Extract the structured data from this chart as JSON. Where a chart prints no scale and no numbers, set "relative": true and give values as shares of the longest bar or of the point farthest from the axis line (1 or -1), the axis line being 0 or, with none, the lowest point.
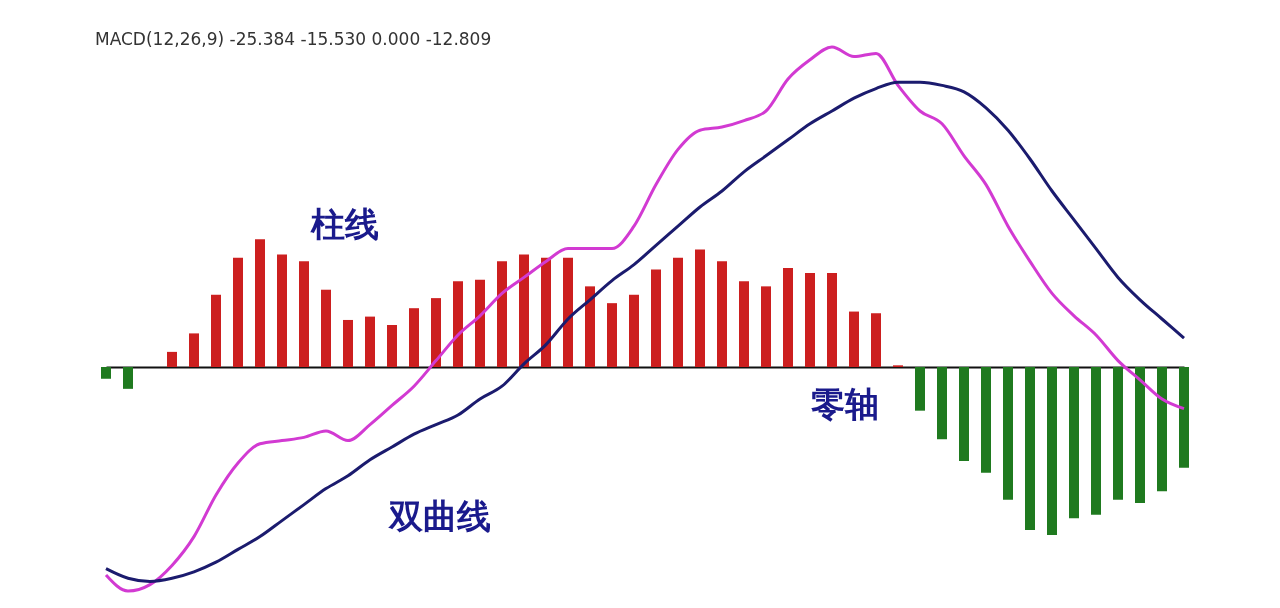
{
  "chart_data": [
    {
      "type": "line",
      "relative": true,
      "title": "MACD(12,26,9) -25.384 -15.530 0.000 -12.809",
      "annotations": [
        "双曲线"
      ],
      "categories": [
        null,
        null,
        null,
        null,
        null,
        null,
        null,
        null,
        null,
        null,
        null,
        null,
        null,
        null,
        null,
        null,
        null,
        null,
        null,
        null,
        null,
        null,
        null,
        null,
        null,
        null,
        null,
        null,
        null,
        null,
        null,
        null,
        null,
        null,
        null,
        null,
        null,
        null,
        null,
        null,
        null,
        null,
        null,
        null,
        null,
        null,
        null,
        null,
        null,
        null
      ],
      "series": [
        {
          "color": "#d23ad2",
          "values": [
            -0.65,
            -0.7,
            -0.68,
            -0.62,
            -0.53,
            -0.4,
            -0.3,
            -0.24,
            -0.23,
            -0.22,
            -0.2,
            -0.23,
            -0.18,
            -0.12,
            -0.06,
            0.02,
            0.1,
            0.16,
            0.23,
            0.28,
            0.33,
            0.37,
            0.37,
            0.37,
            0.44,
            0.57,
            0.68,
            0.74,
            0.75,
            0.77,
            0.8,
            0.9,
            0.96,
            1.0,
            0.97,
            0.98,
            0.88,
            0.8,
            0.76,
            0.66,
            0.57,
            0.44,
            0.33,
            0.23,
            0.16,
            0.1,
            0.02,
            -0.04,
            -0.1,
            -0.13
          ]
        },
        {
          "color": "#1b1b6e",
          "values": [
            -0.63,
            -0.66,
            -0.67,
            -0.66,
            -0.64,
            -0.61,
            -0.57,
            -0.53,
            -0.48,
            -0.43,
            -0.38,
            -0.34,
            -0.29,
            -0.25,
            -0.21,
            -0.18,
            -0.15,
            -0.1,
            -0.06,
            0.01,
            0.07,
            0.15,
            0.21,
            0.27,
            0.32,
            0.38,
            0.44,
            0.5,
            0.55,
            0.61,
            0.66,
            0.71,
            0.76,
            0.8,
            0.84,
            0.87,
            0.89,
            0.89,
            0.88,
            0.86,
            0.81,
            0.74,
            0.65,
            0.55,
            0.46,
            0.37,
            0.28,
            0.21,
            0.15,
            0.09
          ]
        }
      ]
    },
    {
      "type": "bar",
      "relative": true,
      "annotations": [
        "柱线",
        "零轴"
      ],
      "categories": [
        null,
        null,
        null,
        null,
        null,
        null,
        null,
        null,
        null,
        null,
        null,
        null,
        null,
        null,
        null,
        null,
        null,
        null,
        null,
        null,
        null,
        null,
        null,
        null,
        null,
        null,
        null,
        null,
        null,
        null,
        null,
        null,
        null,
        null,
        null,
        null,
        null,
        null,
        null,
        null,
        null,
        null,
        null,
        null,
        null,
        null,
        null,
        null,
        null,
        null
      ],
      "values": [
        -0.07,
        -0.13,
        0,
        0.09,
        0.2,
        0.43,
        0.65,
        0.76,
        0.67,
        0.63,
        0.46,
        0.28,
        0.3,
        0.25,
        0.35,
        0.41,
        0.51,
        0.52,
        0.63,
        0.67,
        0.65,
        0.65,
        0.48,
        0.38,
        0.43,
        0.58,
        0.65,
        0.7,
        0.63,
        0.51,
        0.48,
        0.59,
        0.56,
        0.56,
        0.33,
        0.32,
        0.01,
        -0.26,
        -0.43,
        -0.56,
        -0.63,
        -0.79,
        -0.97,
        -1,
        -0.9,
        -0.88,
        -0.79,
        -0.81,
        -0.74,
        -0.6
      ],
      "colors": [
        "#1f7a1f",
        "#1f7a1f",
        "#1f7a1f",
        "#cc1f1f",
        "#cc1f1f",
        "#cc1f1f",
        "#cc1f1f",
        "#cc1f1f",
        "#cc1f1f",
        "#cc1f1f",
        "#cc1f1f",
        "#cc1f1f",
        "#cc1f1f",
        "#cc1f1f",
        "#cc1f1f",
        "#cc1f1f",
        "#cc1f1f",
        "#cc1f1f",
        "#cc1f1f",
        "#cc1f1f",
        "#cc1f1f",
        "#cc1f1f",
        "#cc1f1f",
        "#cc1f1f",
        "#cc1f1f",
        "#cc1f1f",
        "#cc1f1f",
        "#cc1f1f",
        "#cc1f1f",
        "#cc1f1f",
        "#cc1f1f",
        "#cc1f1f",
        "#cc1f1f",
        "#cc1f1f",
        "#cc1f1f",
        "#cc1f1f",
        "#cc1f1f",
        "#1f7a1f",
        "#1f7a1f",
        "#1f7a1f",
        "#1f7a1f",
        "#1f7a1f",
        "#1f7a1f",
        "#1f7a1f",
        "#1f7a1f",
        "#1f7a1f",
        "#1f7a1f",
        "#1f7a1f",
        "#1f7a1f",
        "#1f7a1f"
      ]
    }
  ]
}
